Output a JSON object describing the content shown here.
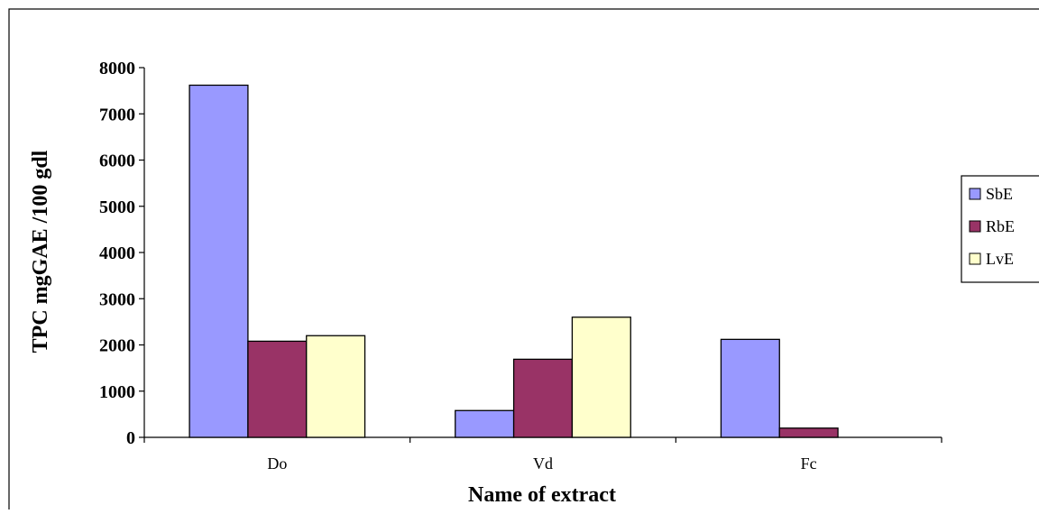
{
  "chart_data": {
    "type": "bar",
    "categories": [
      "Do",
      "Vd",
      "Fc"
    ],
    "series": [
      {
        "name": "SbE",
        "color": "#9999ff",
        "values": [
          7620,
          580,
          2120
        ]
      },
      {
        "name": "RbE",
        "color": "#993366",
        "values": [
          2080,
          1690,
          200
        ]
      },
      {
        "name": "LvE",
        "color": "#ffffcc",
        "values": [
          2200,
          2600,
          0
        ]
      }
    ],
    "title": "",
    "xlabel": "Name of extract",
    "ylabel": "TPC mgGAE /100 gdl",
    "ylim": [
      0,
      8000
    ],
    "yticks": [
      "0",
      "1000",
      "2000",
      "3000",
      "4000",
      "5000",
      "6000",
      "7000",
      "8000"
    ],
    "grid": false,
    "legend_position": "right"
  }
}
